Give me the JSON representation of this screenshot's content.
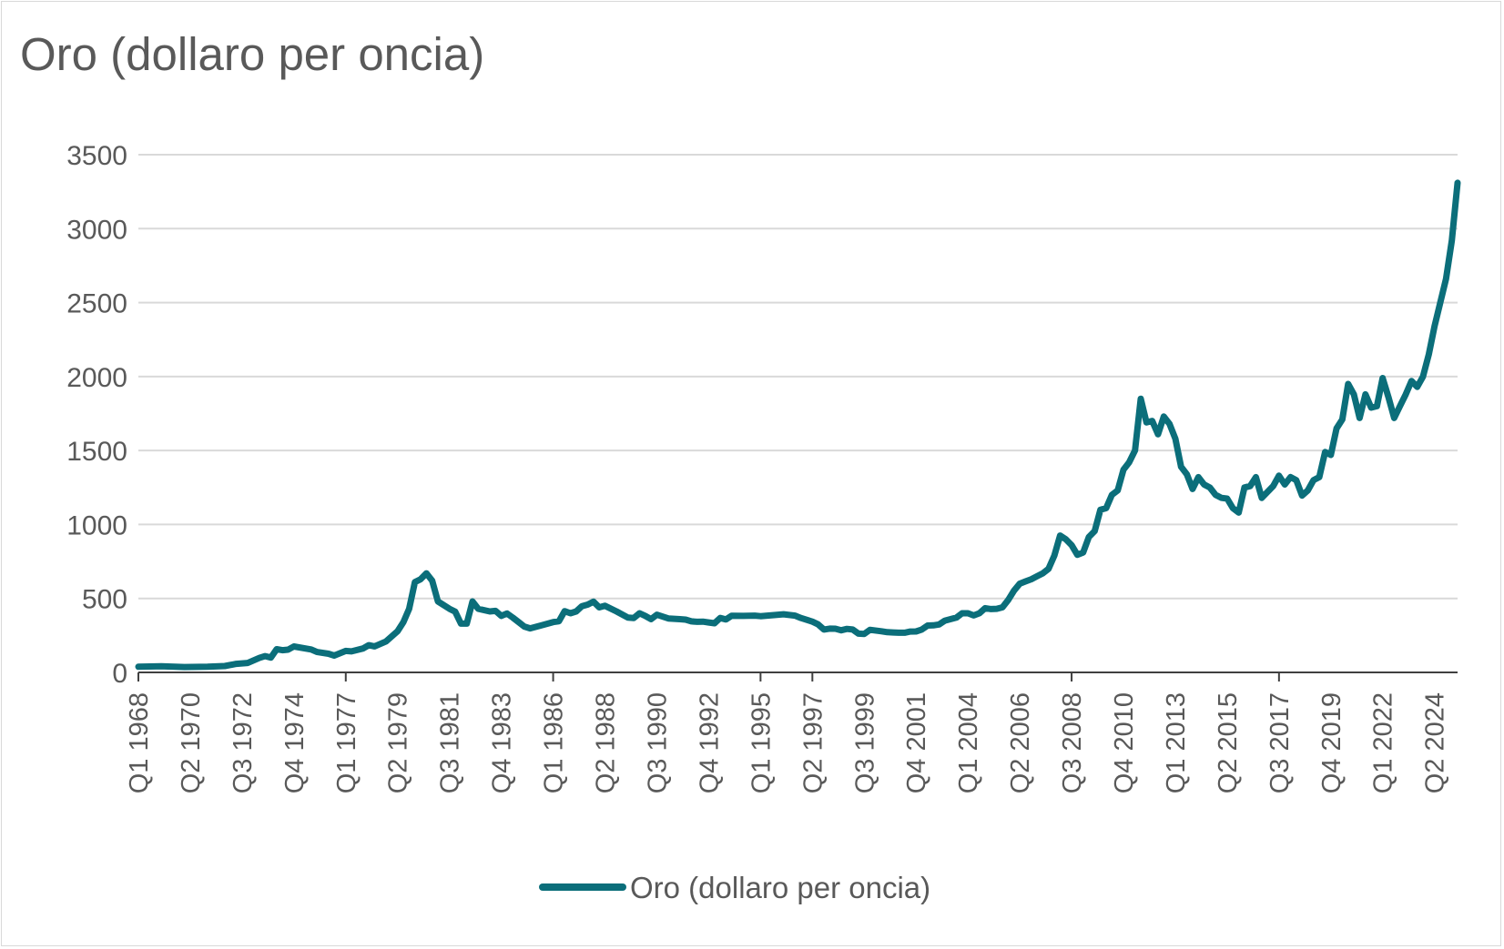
{
  "chart_data": {
    "type": "line",
    "title": "Oro (dollaro per oncia)",
    "xlabel": "",
    "ylabel": "",
    "ylim": [
      0,
      3500
    ],
    "yticks": [
      "0",
      "500",
      "1000",
      "1500",
      "2000",
      "2500",
      "3000",
      "3500"
    ],
    "xtick_labels": [
      "Q1 1968",
      "Q2 1970",
      "Q3 1972",
      "Q4 1974",
      "Q1 1977",
      "Q2 1979",
      "Q3 1981",
      "Q4 1983",
      "Q1 1986",
      "Q2 1988",
      "Q3 1990",
      "Q4 1992",
      "Q1 1995",
      "Q2 1997",
      "Q3 1999",
      "Q4 2001",
      "Q1 2004",
      "Q2 2006",
      "Q3 2008",
      "Q4 2010",
      "Q1 2013",
      "Q2 2015",
      "Q3 2017",
      "Q4 2019",
      "Q1 2022",
      "Q2 2024"
    ],
    "major_ticks": [
      "Q1 1968",
      "Q1 1977",
      "Q1 1986",
      "Q1 1995",
      "Q2 1997",
      "Q3 2008",
      "Q3 2017"
    ],
    "grid": "horizontal",
    "legend_position": "bottom",
    "line_color": "#0B6E7A",
    "series": [
      {
        "name": "Oro (dollaro per oncia)",
        "points": [
          [
            "Q1 1968",
            38
          ],
          [
            "Q1 1969",
            42
          ],
          [
            "Q1 1970",
            36
          ],
          [
            "Q1 1971",
            38
          ],
          [
            "Q4 1971",
            43
          ],
          [
            "Q2 1972",
            58
          ],
          [
            "Q4 1972",
            64
          ],
          [
            "Q2 1973",
            98
          ],
          [
            "Q3 1973",
            110
          ],
          [
            "Q4 1973",
            100
          ],
          [
            "Q1 1974",
            157
          ],
          [
            "Q2 1974",
            150
          ],
          [
            "Q3 1974",
            154
          ],
          [
            "Q4 1974",
            175
          ],
          [
            "Q3 1975",
            155
          ],
          [
            "Q4 1975",
            138
          ],
          [
            "Q2 1976",
            126
          ],
          [
            "Q3 1976",
            114
          ],
          [
            "Q1 1977",
            145
          ],
          [
            "Q2 1977",
            142
          ],
          [
            "Q4 1977",
            162
          ],
          [
            "Q1 1978",
            184
          ],
          [
            "Q2 1978",
            176
          ],
          [
            "Q4 1978",
            210
          ],
          [
            "Q2 1979",
            278
          ],
          [
            "Q3 1979",
            340
          ],
          [
            "Q4 1979",
            430
          ],
          [
            "Q1 1980",
            610
          ],
          [
            "Q2 1980",
            630
          ],
          [
            "Q3 1980",
            670
          ],
          [
            "Q4 1980",
            620
          ],
          [
            "Q1 1981",
            480
          ],
          [
            "Q3 1981",
            430
          ],
          [
            "Q4 1981",
            410
          ],
          [
            "Q1 1982",
            330
          ],
          [
            "Q2 1982",
            330
          ],
          [
            "Q3 1982",
            480
          ],
          [
            "Q4 1982",
            430
          ],
          [
            "Q2 1983",
            412
          ],
          [
            "Q3 1983",
            416
          ],
          [
            "Q4 1983",
            382
          ],
          [
            "Q1 1984",
            398
          ],
          [
            "Q2 1984",
            370
          ],
          [
            "Q3 1984",
            340
          ],
          [
            "Q4 1984",
            310
          ],
          [
            "Q1 1985",
            298
          ],
          [
            "Q3 1985",
            318
          ],
          [
            "Q1 1986",
            340
          ],
          [
            "Q2 1986",
            346
          ],
          [
            "Q3 1986",
            414
          ],
          [
            "Q4 1986",
            400
          ],
          [
            "Q1 1987",
            412
          ],
          [
            "Q2 1987",
            448
          ],
          [
            "Q3 1987",
            458
          ],
          [
            "Q4 1987",
            478
          ],
          [
            "Q1 1988",
            440
          ],
          [
            "Q2 1988",
            450
          ],
          [
            "Q4 1988",
            412
          ],
          [
            "Q2 1989",
            370
          ],
          [
            "Q3 1989",
            368
          ],
          [
            "Q4 1989",
            400
          ],
          [
            "Q1 1990",
            382
          ],
          [
            "Q2 1990",
            360
          ],
          [
            "Q3 1990",
            390
          ],
          [
            "Q1 1991",
            365
          ],
          [
            "Q3 1991",
            360
          ],
          [
            "Q4 1991",
            357
          ],
          [
            "Q1 1992",
            345
          ],
          [
            "Q2 1992",
            342
          ],
          [
            "Q3 1992",
            343
          ],
          [
            "Q4 1992",
            338
          ],
          [
            "Q1 1993",
            332
          ],
          [
            "Q2 1993",
            368
          ],
          [
            "Q3 1993",
            358
          ],
          [
            "Q4 1993",
            383
          ],
          [
            "Q2 1994",
            382
          ],
          [
            "Q4 1994",
            384
          ],
          [
            "Q1 1995",
            380
          ],
          [
            "Q1 1996",
            393
          ],
          [
            "Q3 1996",
            384
          ],
          [
            "Q4 1996",
            368
          ],
          [
            "Q2 1997",
            343
          ],
          [
            "Q3 1997",
            325
          ],
          [
            "Q4 1997",
            290
          ],
          [
            "Q1 1998",
            296
          ],
          [
            "Q2 1998",
            295
          ],
          [
            "Q3 1998",
            285
          ],
          [
            "Q4 1998",
            294
          ],
          [
            "Q1 1999",
            290
          ],
          [
            "Q2 1999",
            262
          ],
          [
            "Q3 1999",
            260
          ],
          [
            "Q4 1999",
            288
          ],
          [
            "Q2 2000",
            278
          ],
          [
            "Q3 2000",
            272
          ],
          [
            "Q4 2000",
            270
          ],
          [
            "Q1 2001",
            268
          ],
          [
            "Q2 2001",
            268
          ],
          [
            "Q3 2001",
            276
          ],
          [
            "Q4 2001",
            277
          ],
          [
            "Q1 2002",
            290
          ],
          [
            "Q2 2002",
            317
          ],
          [
            "Q3 2002",
            318
          ],
          [
            "Q4 2002",
            324
          ],
          [
            "Q1 2003",
            350
          ],
          [
            "Q3 2003",
            370
          ],
          [
            "Q4 2003",
            400
          ],
          [
            "Q1 2004",
            400
          ],
          [
            "Q2 2004",
            385
          ],
          [
            "Q3 2004",
            400
          ],
          [
            "Q4 2004",
            434
          ],
          [
            "Q1 2005",
            428
          ],
          [
            "Q2 2005",
            430
          ],
          [
            "Q3 2005",
            440
          ],
          [
            "Q4 2005",
            490
          ],
          [
            "Q1 2006",
            553
          ],
          [
            "Q2 2006",
            600
          ],
          [
            "Q3 2006",
            615
          ],
          [
            "Q4 2006",
            630
          ],
          [
            "Q1 2007",
            650
          ],
          [
            "Q2 2007",
            670
          ],
          [
            "Q3 2007",
            700
          ],
          [
            "Q4 2007",
            790
          ],
          [
            "Q1 2008",
            925
          ],
          [
            "Q2 2008",
            900
          ],
          [
            "Q3 2008",
            860
          ],
          [
            "Q4 2008",
            795
          ],
          [
            "Q1 2009",
            810
          ],
          [
            "Q2 2009",
            915
          ],
          [
            "Q3 2009",
            955
          ],
          [
            "Q4 2009",
            1100
          ],
          [
            "Q1 2010",
            1110
          ],
          [
            "Q2 2010",
            1200
          ],
          [
            "Q3 2010",
            1230
          ],
          [
            "Q4 2010",
            1370
          ],
          [
            "Q1 2011",
            1420
          ],
          [
            "Q2 2011",
            1500
          ],
          [
            "Q3 2011",
            1850
          ],
          [
            "Q4 2011",
            1690
          ],
          [
            "Q1 2012",
            1700
          ],
          [
            "Q2 2012",
            1610
          ],
          [
            "Q3 2012",
            1730
          ],
          [
            "Q4 2012",
            1680
          ],
          [
            "Q1 2013",
            1580
          ],
          [
            "Q2 2013",
            1390
          ],
          [
            "Q3 2013",
            1340
          ],
          [
            "Q4 2013",
            1240
          ],
          [
            "Q1 2014",
            1320
          ],
          [
            "Q2 2014",
            1270
          ],
          [
            "Q3 2014",
            1250
          ],
          [
            "Q4 2014",
            1200
          ],
          [
            "Q1 2015",
            1180
          ],
          [
            "Q2 2015",
            1175
          ],
          [
            "Q3 2015",
            1110
          ],
          [
            "Q4 2015",
            1080
          ],
          [
            "Q1 2016",
            1250
          ],
          [
            "Q2 2016",
            1260
          ],
          [
            "Q3 2016",
            1320
          ],
          [
            "Q4 2016",
            1180
          ],
          [
            "Q1 2017",
            1220
          ],
          [
            "Q2 2017",
            1260
          ],
          [
            "Q3 2017",
            1330
          ],
          [
            "Q4 2017",
            1270
          ],
          [
            "Q1 2018",
            1320
          ],
          [
            "Q2 2018",
            1300
          ],
          [
            "Q3 2018",
            1195
          ],
          [
            "Q4 2018",
            1230
          ],
          [
            "Q1 2019",
            1300
          ],
          [
            "Q2 2019",
            1320
          ],
          [
            "Q3 2019",
            1490
          ],
          [
            "Q4 2019",
            1470
          ],
          [
            "Q1 2020",
            1650
          ],
          [
            "Q2 2020",
            1710
          ],
          [
            "Q3 2020",
            1950
          ],
          [
            "Q4 2020",
            1880
          ],
          [
            "Q1 2021",
            1720
          ],
          [
            "Q2 2021",
            1880
          ],
          [
            "Q3 2021",
            1790
          ],
          [
            "Q4 2021",
            1800
          ],
          [
            "Q1 2022",
            1990
          ],
          [
            "Q2 2022",
            1860
          ],
          [
            "Q3 2022",
            1720
          ],
          [
            "Q4 2022",
            1800
          ],
          [
            "Q1 2023",
            1880
          ],
          [
            "Q2 2023",
            1970
          ],
          [
            "Q3 2023",
            1930
          ],
          [
            "Q4 2023",
            2000
          ],
          [
            "Q1 2024",
            2150
          ],
          [
            "Q2 2024",
            2340
          ],
          [
            "Q3 2024",
            2500
          ],
          [
            "Q4 2024",
            2660
          ],
          [
            "Q1 2025",
            2920
          ],
          [
            "Q2 2025",
            3310
          ]
        ]
      }
    ]
  }
}
